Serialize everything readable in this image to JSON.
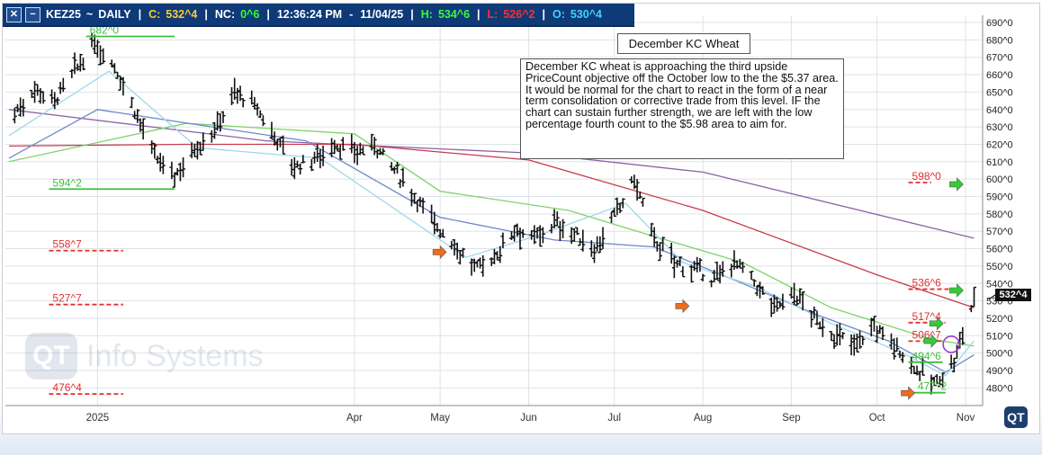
{
  "header": {
    "symbol": "KEZ25",
    "tilde": "~",
    "interval": "DAILY",
    "close_label": "C:",
    "close_value": "532^4",
    "net_change_label": "NC:",
    "net_change_value": "0^6",
    "time": "12:36:24 PM",
    "dash": "-",
    "date": "11/04/25",
    "high_label": "H:",
    "high_value": "534^6",
    "low_label": "L:",
    "low_value": "526^2",
    "open_label": "O:",
    "open_value": "530^4",
    "close_button_icon": "close-icon",
    "minimize_button_icon": "minus-icon"
  },
  "title_box": "December KC Wheat",
  "comment": "December KC wheat is approaching the third upside PriceCount objective off the October low to the the $5.37 area.  It would be normal for the chart to react in the form of a near term consolidation or corrective trade from this level.  IF the chart can sustain further strength, we are left with the low percentage fourth count to the $5.98 area to aim for.",
  "watermark": {
    "logo_text": "QT",
    "text": "Info Systems"
  },
  "corner_logo": "QT",
  "last_price_tag": "532^4",
  "colors": {
    "header_bg": "#0f3a78",
    "bars": "#111111",
    "ma_purple": "#8a63a8",
    "ma_red": "#c93a4a",
    "ma_green": "#7fd36b",
    "ma_blue": "#6f88c8",
    "ma_lightblue": "#9fd6e8",
    "target_red": "#e0312f",
    "target_green": "#3fbf3f",
    "arrow_orange": "#f26a1b",
    "arrow_green": "#33cc33"
  },
  "chart_data": {
    "type": "ohlc",
    "y_axis": {
      "min": 470,
      "max": 695,
      "ticks": [
        "690^0",
        "680^0",
        "670^0",
        "660^0",
        "650^0",
        "640^0",
        "630^0",
        "620^0",
        "610^0",
        "600^0",
        "590^0",
        "580^0",
        "570^0",
        "560^0",
        "550^0",
        "540^0",
        "530^0",
        "520^0",
        "510^0",
        "500^0",
        "490^0",
        "480^0"
      ],
      "tick_values": [
        690,
        680,
        670,
        660,
        650,
        640,
        630,
        620,
        610,
        600,
        590,
        580,
        570,
        560,
        550,
        540,
        530,
        520,
        510,
        500,
        490,
        480
      ]
    },
    "x_axis": {
      "labels": [
        "2025",
        "Apr",
        "May",
        "Jun",
        "Jul",
        "Aug",
        "Sep",
        "Oct",
        "Nov"
      ],
      "label_dates": [
        "2025-01-01",
        "2025-04-01",
        "2025-05-01",
        "2025-06-01",
        "2025-07-01",
        "2025-08-01",
        "2025-09-01",
        "2025-10-01",
        "2025-11-01"
      ],
      "start_date": "2024-12-01",
      "end_date": "2025-11-04"
    },
    "grid": true,
    "closes_path": [
      [
        "2024-12-03",
        638
      ],
      [
        "2024-12-10",
        652
      ],
      [
        "2024-12-17",
        645
      ],
      [
        "2024-12-24",
        662
      ],
      [
        "2024-12-31",
        678
      ],
      [
        "2025-01-07",
        665
      ],
      [
        "2025-01-14",
        640
      ],
      [
        "2025-01-21",
        612
      ],
      [
        "2025-01-28",
        602
      ],
      [
        "2025-02-04",
        618
      ],
      [
        "2025-02-11",
        628
      ],
      [
        "2025-02-18",
        650
      ],
      [
        "2025-02-25",
        642
      ],
      [
        "2025-03-04",
        625
      ],
      [
        "2025-03-11",
        607
      ],
      [
        "2025-03-18",
        612
      ],
      [
        "2025-03-25",
        620
      ],
      [
        "2025-04-01",
        615
      ],
      [
        "2025-04-08",
        620
      ],
      [
        "2025-04-15",
        605
      ],
      [
        "2025-04-22",
        590
      ],
      [
        "2025-04-29",
        575
      ],
      [
        "2025-05-06",
        562
      ],
      [
        "2025-05-13",
        548
      ],
      [
        "2025-05-20",
        555
      ],
      [
        "2025-05-27",
        572
      ],
      [
        "2025-06-03",
        565
      ],
      [
        "2025-06-10",
        575
      ],
      [
        "2025-06-17",
        568
      ],
      [
        "2025-06-24",
        560
      ],
      [
        "2025-07-01",
        578
      ],
      [
        "2025-07-08",
        600
      ],
      [
        "2025-07-15",
        565
      ],
      [
        "2025-07-22",
        552
      ],
      [
        "2025-07-29",
        548
      ],
      [
        "2025-08-05",
        542
      ],
      [
        "2025-08-12",
        553
      ],
      [
        "2025-08-19",
        540
      ],
      [
        "2025-08-26",
        526
      ],
      [
        "2025-09-02",
        535
      ],
      [
        "2025-09-09",
        520
      ],
      [
        "2025-09-16",
        510
      ],
      [
        "2025-09-23",
        505
      ],
      [
        "2025-09-30",
        515
      ],
      [
        "2025-10-07",
        505
      ],
      [
        "2025-10-14",
        492
      ],
      [
        "2025-10-21",
        482
      ],
      [
        "2025-10-28",
        495
      ],
      [
        "2025-11-04",
        532
      ]
    ],
    "moving_averages": [
      {
        "color": "purple",
        "points": [
          [
            "2024-12-01",
            640
          ],
          [
            "2025-03-01",
            622
          ],
          [
            "2025-06-01",
            615
          ],
          [
            "2025-08-01",
            604
          ],
          [
            "2025-11-04",
            566
          ]
        ]
      },
      {
        "color": "red",
        "points": [
          [
            "2024-12-01",
            619
          ],
          [
            "2025-02-01",
            620
          ],
          [
            "2025-04-01",
            620
          ],
          [
            "2025-06-01",
            611
          ],
          [
            "2025-08-01",
            582
          ],
          [
            "2025-10-01",
            545
          ],
          [
            "2025-11-04",
            526
          ]
        ]
      },
      {
        "color": "green",
        "points": [
          [
            "2024-12-01",
            610
          ],
          [
            "2025-02-01",
            632
          ],
          [
            "2025-04-01",
            626
          ],
          [
            "2025-05-01",
            593
          ],
          [
            "2025-06-15",
            582
          ],
          [
            "2025-07-15",
            567
          ],
          [
            "2025-08-15",
            552
          ],
          [
            "2025-09-15",
            526
          ],
          [
            "2025-10-20",
            508
          ],
          [
            "2025-11-04",
            504
          ]
        ]
      },
      {
        "color": "blue",
        "points": [
          [
            "2024-12-01",
            612
          ],
          [
            "2025-01-01",
            640
          ],
          [
            "2025-02-10",
            630
          ],
          [
            "2025-03-15",
            622
          ],
          [
            "2025-05-01",
            578
          ],
          [
            "2025-06-10",
            565
          ],
          [
            "2025-07-15",
            561
          ],
          [
            "2025-08-15",
            540
          ],
          [
            "2025-09-10",
            522
          ],
          [
            "2025-10-05",
            507
          ],
          [
            "2025-10-25",
            489
          ],
          [
            "2025-11-04",
            499
          ]
        ]
      },
      {
        "color": "lightblue",
        "points": [
          [
            "2024-12-01",
            625
          ],
          [
            "2025-01-05",
            662
          ],
          [
            "2025-02-05",
            618
          ],
          [
            "2025-03-20",
            612
          ],
          [
            "2025-05-10",
            555
          ],
          [
            "2025-06-05",
            568
          ],
          [
            "2025-07-05",
            586
          ],
          [
            "2025-07-25",
            552
          ],
          [
            "2025-08-20",
            538
          ],
          [
            "2025-09-15",
            517
          ],
          [
            "2025-10-10",
            500
          ],
          [
            "2025-10-25",
            487
          ],
          [
            "2025-11-04",
            507
          ]
        ]
      }
    ],
    "levels": [
      {
        "label": "682^0",
        "value": 682.0,
        "color": "green",
        "x_start": "2024-12-28",
        "x_end": "2025-01-28"
      },
      {
        "label": "594^2",
        "value": 594.25,
        "color": "green",
        "x_start": "2024-12-15",
        "x_end": "2025-01-28"
      },
      {
        "label": "558^7",
        "value": 558.875,
        "color": "red",
        "x_start": "2024-12-15",
        "x_end": "2025-01-10"
      },
      {
        "label": "527^7",
        "value": 527.875,
        "color": "red",
        "x_start": "2024-12-15",
        "x_end": "2025-01-10"
      },
      {
        "label": "476^4",
        "value": 476.5,
        "color": "red",
        "x_start": "2024-12-15",
        "x_end": "2025-01-10"
      },
      {
        "label": "598^0",
        "value": 598.0,
        "color": "red",
        "x_start": "2025-10-12",
        "x_end": "2025-10-20"
      },
      {
        "label": "536^6",
        "value": 536.75,
        "color": "red",
        "x_start": "2025-10-12",
        "x_end": "2025-10-28"
      },
      {
        "label": "517^4",
        "value": 517.5,
        "color": "red",
        "x_start": "2025-10-12",
        "x_end": "2025-10-25"
      },
      {
        "label": "506^7",
        "value": 506.875,
        "color": "red",
        "x_start": "2025-10-12",
        "x_end": "2025-10-24"
      },
      {
        "label": "494^6",
        "value": 494.75,
        "color": "green",
        "x_start": "2025-10-12",
        "x_end": "2025-10-24"
      },
      {
        "label": "477^2",
        "value": 477.25,
        "color": "green",
        "x_start": "2025-10-14",
        "x_end": "2025-10-25"
      }
    ],
    "arrows": [
      {
        "color": "orange",
        "date": "2025-05-01",
        "value": 558
      },
      {
        "color": "orange",
        "date": "2025-07-25",
        "value": 527
      },
      {
        "color": "orange",
        "date": "2025-10-12",
        "value": 477
      },
      {
        "color": "green",
        "date": "2025-10-22",
        "value": 517
      },
      {
        "color": "green",
        "date": "2025-10-20",
        "value": 507
      },
      {
        "color": "green",
        "date": "2025-10-29",
        "value": 536
      },
      {
        "color": "green",
        "date": "2025-10-29",
        "value": 597
      }
    ],
    "marker_circle": {
      "date": "2025-10-27",
      "value": 505
    }
  }
}
